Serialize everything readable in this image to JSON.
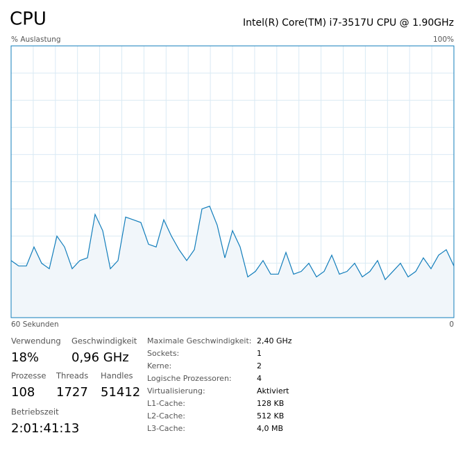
{
  "header": {
    "title": "CPU",
    "processor": "Intel(R) Core(TM) i7-3517U CPU @ 1.90GHz"
  },
  "chart_data": {
    "type": "line",
    "ylabel": "% Auslastung",
    "ylim": [
      0,
      100
    ],
    "yticks": [
      {
        "value": 100,
        "label": "100%"
      }
    ],
    "xlim": [
      60,
      0
    ],
    "xticks": [
      {
        "value": 60,
        "label": "60 Sekunden"
      },
      0
    ],
    "grid": true,
    "color": "#117dbb",
    "fill": "#f1f6fa",
    "values": [
      21,
      19,
      19,
      26,
      20,
      18,
      30,
      26,
      18,
      21,
      22,
      38,
      32,
      18,
      21,
      37,
      36,
      35,
      27,
      26,
      36,
      30,
      25,
      21,
      25,
      40,
      41,
      34,
      22,
      32,
      26,
      15,
      17,
      21,
      16,
      16,
      24,
      16,
      17,
      20,
      15,
      17,
      23,
      16,
      17,
      20,
      15,
      17,
      21,
      14,
      17,
      20,
      15,
      17,
      22,
      18,
      23,
      25,
      19
    ]
  },
  "stats": [
    {
      "label": "Verwendung",
      "value": "18%"
    },
    {
      "label": "Geschwindigkeit",
      "value": "0,96 GHz"
    },
    {
      "label": "Prozesse",
      "value": "108"
    },
    {
      "label": "Threads",
      "value": "1727"
    },
    {
      "label": "Handles",
      "value": "51412"
    },
    {
      "label": "Betriebszeit",
      "value": "2:01:41:13"
    }
  ],
  "details": [
    {
      "label": "Maximale Geschwindigkeit:",
      "value": "2,40 GHz"
    },
    {
      "label": "Sockets:",
      "value": "1"
    },
    {
      "label": "Kerne:",
      "value": "2"
    },
    {
      "label": "Logische Prozessoren:",
      "value": "4"
    },
    {
      "label": "Virtualisierung:",
      "value": "Aktiviert"
    },
    {
      "label": "L1-Cache:",
      "value": "128 KB"
    },
    {
      "label": "L2-Cache:",
      "value": "512 KB"
    },
    {
      "label": "L3-Cache:",
      "value": "4,0 MB"
    }
  ]
}
